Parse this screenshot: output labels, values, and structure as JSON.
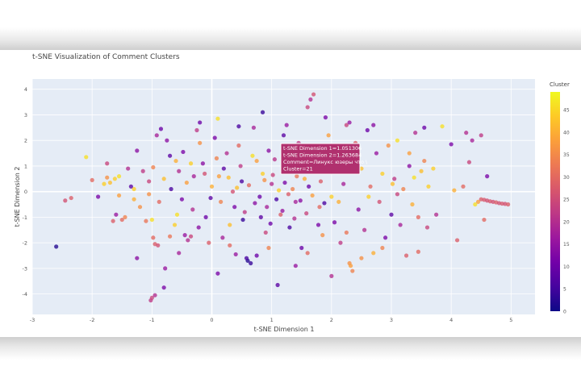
{
  "chart_data": {
    "type": "scatter",
    "title": "t-SNE Visualization of Comment Clusters",
    "xlabel": "t-SNE Dimension 1",
    "ylabel": "t-SNE Dimension 2",
    "xlim": [
      -3,
      5.4
    ],
    "ylim": [
      -4.8,
      4.4
    ],
    "xticks": [
      -3,
      -2,
      -1,
      0,
      1,
      2,
      3,
      4,
      5
    ],
    "yticks": [
      -4,
      -3,
      -2,
      -1,
      0,
      1,
      2,
      3,
      4
    ],
    "grid": true,
    "colorbar": {
      "title": "Cluster",
      "range": [
        0,
        49
      ],
      "ticks": [
        0,
        5,
        10,
        15,
        20,
        25,
        30,
        35,
        40,
        45
      ],
      "colorscale": "plasma"
    },
    "hover": {
      "lines": [
        "t-SNE Dimension 1=1.051306",
        "t-SNE Dimension 2=1.263684",
        "Comment=Линукс юзеры  что  \\",
        "Cluster=21"
      ]
    },
    "points": [
      {
        "x": -2.6,
        "y": -2.15,
        "c": 2
      },
      {
        "x": -2.45,
        "y": -0.35,
        "c": 26
      },
      {
        "x": -2.35,
        "y": -0.25,
        "c": 28
      },
      {
        "x": -2.1,
        "y": 1.35,
        "c": 46
      },
      {
        "x": -1.9,
        "y": -0.2,
        "c": 12
      },
      {
        "x": -1.75,
        "y": 0.55,
        "c": 36
      },
      {
        "x": -1.7,
        "y": 0.35,
        "c": 42
      },
      {
        "x": -1.62,
        "y": 0.5,
        "c": 44
      },
      {
        "x": -1.55,
        "y": -0.15,
        "c": 38
      },
      {
        "x": -1.5,
        "y": -1.1,
        "c": 30
      },
      {
        "x": -1.45,
        "y": -1.0,
        "c": 34
      },
      {
        "x": -1.4,
        "y": 0.9,
        "c": 20
      },
      {
        "x": -1.3,
        "y": 0.1,
        "c": 44
      },
      {
        "x": -1.25,
        "y": 1.6,
        "c": 14
      },
      {
        "x": -1.2,
        "y": -0.6,
        "c": 36
      },
      {
        "x": -1.1,
        "y": -1.15,
        "c": 32
      },
      {
        "x": -1.05,
        "y": 0.4,
        "c": 24
      },
      {
        "x": -1.0,
        "y": -1.1,
        "c": 46
      },
      {
        "x": -0.95,
        "y": -2.05,
        "c": 28
      },
      {
        "x": -0.9,
        "y": -2.1,
        "c": 26
      },
      {
        "x": -0.98,
        "y": -1.8,
        "c": 30
      },
      {
        "x": -1.02,
        "y": -4.25,
        "c": 22
      },
      {
        "x": -1.0,
        "y": -4.15,
        "c": 24
      },
      {
        "x": -0.95,
        "y": -4.05,
        "c": 20
      },
      {
        "x": -0.8,
        "y": -3.75,
        "c": 12
      },
      {
        "x": -0.78,
        "y": -3.0,
        "c": 16
      },
      {
        "x": -0.92,
        "y": 2.2,
        "c": 18
      },
      {
        "x": -0.85,
        "y": 2.45,
        "c": 10
      },
      {
        "x": -0.75,
        "y": 2.0,
        "c": 14
      },
      {
        "x": -0.7,
        "y": 1.4,
        "c": 8
      },
      {
        "x": -0.6,
        "y": 1.2,
        "c": 40
      },
      {
        "x": -0.55,
        "y": 0.8,
        "c": 20
      },
      {
        "x": -0.5,
        "y": -0.3,
        "c": 12
      },
      {
        "x": -0.45,
        "y": -1.7,
        "c": 16
      },
      {
        "x": -0.4,
        "y": -1.9,
        "c": 20
      },
      {
        "x": -0.35,
        "y": -1.75,
        "c": 24
      },
      {
        "x": -0.3,
        "y": 0.6,
        "c": 18
      },
      {
        "x": -0.25,
        "y": 2.4,
        "c": 22
      },
      {
        "x": -0.2,
        "y": 1.9,
        "c": 36
      },
      {
        "x": -0.15,
        "y": 1.1,
        "c": 14
      },
      {
        "x": -0.1,
        "y": -1.0,
        "c": 10
      },
      {
        "x": -0.05,
        "y": -2.0,
        "c": 28
      },
      {
        "x": 0.0,
        "y": 0.2,
        "c": 40
      },
      {
        "x": 0.05,
        "y": 2.1,
        "c": 12
      },
      {
        "x": 0.1,
        "y": 2.85,
        "c": 46
      },
      {
        "x": 0.15,
        "y": -0.4,
        "c": 34
      },
      {
        "x": 0.2,
        "y": 0.9,
        "c": 8
      },
      {
        "x": 0.25,
        "y": 1.5,
        "c": 20
      },
      {
        "x": 0.3,
        "y": -1.3,
        "c": 42
      },
      {
        "x": 0.35,
        "y": 0.0,
        "c": 26
      },
      {
        "x": 0.4,
        "y": -2.45,
        "c": 16
      },
      {
        "x": 0.45,
        "y": 1.8,
        "c": 30
      },
      {
        "x": 0.5,
        "y": 0.4,
        "c": 6
      },
      {
        "x": 0.55,
        "y": -0.8,
        "c": 22
      },
      {
        "x": 0.6,
        "y": -2.7,
        "c": 2
      },
      {
        "x": 0.65,
        "y": -2.8,
        "c": 4
      },
      {
        "x": 0.58,
        "y": -2.6,
        "c": 6
      },
      {
        "x": 0.7,
        "y": 2.5,
        "c": 18
      },
      {
        "x": 0.75,
        "y": 1.2,
        "c": 38
      },
      {
        "x": 0.8,
        "y": -0.2,
        "c": 10
      },
      {
        "x": 0.85,
        "y": 0.7,
        "c": 44
      },
      {
        "x": 0.9,
        "y": -1.6,
        "c": 24
      },
      {
        "x": 0.95,
        "y": 1.6,
        "c": 14
      },
      {
        "x": 1.0,
        "y": 0.3,
        "c": 20
      },
      {
        "x": 1.05,
        "y": 1.26,
        "c": 21
      },
      {
        "x": 1.1,
        "y": -3.65,
        "c": 8
      },
      {
        "x": 1.15,
        "y": -0.9,
        "c": 28
      },
      {
        "x": 1.2,
        "y": 0.9,
        "c": 12
      },
      {
        "x": 1.25,
        "y": 2.6,
        "c": 16
      },
      {
        "x": 1.3,
        "y": -1.4,
        "c": 6
      },
      {
        "x": 1.35,
        "y": 0.1,
        "c": 34
      },
      {
        "x": 1.4,
        "y": -0.4,
        "c": 18
      },
      {
        "x": 1.45,
        "y": 1.9,
        "c": 22
      },
      {
        "x": 1.5,
        "y": -2.2,
        "c": 10
      },
      {
        "x": 1.55,
        "y": 0.5,
        "c": 40
      },
      {
        "x": 1.6,
        "y": 3.3,
        "c": 24
      },
      {
        "x": 1.65,
        "y": 3.6,
        "c": 20
      },
      {
        "x": 1.7,
        "y": 3.8,
        "c": 26
      },
      {
        "x": 1.75,
        "y": 1.4,
        "c": 14
      },
      {
        "x": 1.8,
        "y": -0.6,
        "c": 30
      },
      {
        "x": 1.85,
        "y": -1.7,
        "c": 36
      },
      {
        "x": 1.9,
        "y": 0.8,
        "c": 8
      },
      {
        "x": 1.95,
        "y": 2.2,
        "c": 38
      },
      {
        "x": 2.0,
        "y": -0.2,
        "c": 44
      },
      {
        "x": 2.05,
        "y": -1.2,
        "c": 12
      },
      {
        "x": 2.1,
        "y": 1.1,
        "c": 32
      },
      {
        "x": 2.15,
        "y": -2.0,
        "c": 22
      },
      {
        "x": 2.2,
        "y": 0.3,
        "c": 18
      },
      {
        "x": 2.25,
        "y": 2.6,
        "c": 24
      },
      {
        "x": 2.3,
        "y": -2.8,
        "c": 36
      },
      {
        "x": 2.35,
        "y": -3.1,
        "c": 34
      },
      {
        "x": 2.32,
        "y": -2.9,
        "c": 38
      },
      {
        "x": 2.4,
        "y": 1.9,
        "c": 28
      },
      {
        "x": 2.45,
        "y": -0.7,
        "c": 14
      },
      {
        "x": 2.5,
        "y": 0.9,
        "c": 42
      },
      {
        "x": 2.55,
        "y": -1.5,
        "c": 20
      },
      {
        "x": 2.6,
        "y": 2.4,
        "c": 10
      },
      {
        "x": 2.65,
        "y": 0.2,
        "c": 30
      },
      {
        "x": 2.7,
        "y": -2.4,
        "c": 40
      },
      {
        "x": 2.75,
        "y": 1.5,
        "c": 16
      },
      {
        "x": 2.8,
        "y": -0.4,
        "c": 26
      },
      {
        "x": 2.85,
        "y": 0.7,
        "c": 44
      },
      {
        "x": 2.9,
        "y": -1.8,
        "c": 12
      },
      {
        "x": 2.95,
        "y": 1.8,
        "c": 36
      },
      {
        "x": 3.0,
        "y": -0.9,
        "c": 8
      },
      {
        "x": 3.05,
        "y": 0.5,
        "c": 22
      },
      {
        "x": 3.1,
        "y": 2.0,
        "c": 46
      },
      {
        "x": 3.15,
        "y": -1.3,
        "c": 18
      },
      {
        "x": 3.2,
        "y": 0.1,
        "c": 34
      },
      {
        "x": 3.25,
        "y": -2.5,
        "c": 28
      },
      {
        "x": 3.3,
        "y": 1.0,
        "c": 14
      },
      {
        "x": 3.35,
        "y": -0.5,
        "c": 40
      },
      {
        "x": 3.4,
        "y": 2.3,
        "c": 20
      },
      {
        "x": 3.45,
        "y": -1.0,
        "c": 30
      },
      {
        "x": 3.5,
        "y": 0.8,
        "c": 42
      },
      {
        "x": 3.55,
        "y": 2.5,
        "c": 10
      },
      {
        "x": 3.6,
        "y": -1.4,
        "c": 24
      },
      {
        "x": 3.7,
        "y": 0.9,
        "c": 44
      },
      {
        "x": 3.85,
        "y": 2.55,
        "c": 46
      },
      {
        "x": 4.0,
        "y": 1.85,
        "c": 12
      },
      {
        "x": 4.05,
        "y": 0.05,
        "c": 40
      },
      {
        "x": 4.2,
        "y": 0.2,
        "c": 30
      },
      {
        "x": 4.25,
        "y": 2.3,
        "c": 20
      },
      {
        "x": 4.3,
        "y": 1.15,
        "c": 24
      },
      {
        "x": 4.35,
        "y": 2.0,
        "c": 18
      },
      {
        "x": 4.4,
        "y": -0.5,
        "c": 46
      },
      {
        "x": 4.45,
        "y": -0.4,
        "c": 38
      },
      {
        "x": 4.5,
        "y": 2.2,
        "c": 22
      },
      {
        "x": 4.55,
        "y": -1.1,
        "c": 30
      },
      {
        "x": 4.6,
        "y": 0.6,
        "c": 12
      },
      {
        "x": 4.5,
        "y": -0.3,
        "c": 28
      },
      {
        "x": 4.55,
        "y": -0.32,
        "c": 27
      },
      {
        "x": 4.6,
        "y": -0.35,
        "c": 26
      },
      {
        "x": 4.65,
        "y": -0.38,
        "c": 27
      },
      {
        "x": 4.7,
        "y": -0.4,
        "c": 26
      },
      {
        "x": 4.75,
        "y": -0.42,
        "c": 28
      },
      {
        "x": 4.8,
        "y": -0.45,
        "c": 26
      },
      {
        "x": 4.85,
        "y": -0.47,
        "c": 27
      },
      {
        "x": 4.9,
        "y": -0.48,
        "c": 26
      },
      {
        "x": 4.95,
        "y": -0.5,
        "c": 28
      },
      {
        "x": -1.6,
        "y": -0.9,
        "c": 16
      },
      {
        "x": -1.35,
        "y": 0.2,
        "c": 8
      },
      {
        "x": -1.15,
        "y": 0.8,
        "c": 22
      },
      {
        "x": -0.88,
        "y": -0.4,
        "c": 30
      },
      {
        "x": -0.68,
        "y": 0.1,
        "c": 6
      },
      {
        "x": -0.62,
        "y": -1.3,
        "c": 44
      },
      {
        "x": -0.48,
        "y": 1.55,
        "c": 12
      },
      {
        "x": -0.42,
        "y": 0.35,
        "c": 38
      },
      {
        "x": -0.32,
        "y": -0.7,
        "c": 20
      },
      {
        "x": -0.22,
        "y": -1.4,
        "c": 14
      },
      {
        "x": -0.12,
        "y": 0.7,
        "c": 26
      },
      {
        "x": -0.02,
        "y": -0.25,
        "c": 8
      },
      {
        "x": 0.08,
        "y": 1.3,
        "c": 34
      },
      {
        "x": 0.18,
        "y": -1.8,
        "c": 18
      },
      {
        "x": 0.28,
        "y": 0.55,
        "c": 42
      },
      {
        "x": 0.38,
        "y": -0.6,
        "c": 12
      },
      {
        "x": 0.48,
        "y": 1.0,
        "c": 22
      },
      {
        "x": 0.52,
        "y": -1.1,
        "c": 4
      },
      {
        "x": 0.62,
        "y": 0.25,
        "c": 30
      },
      {
        "x": 0.72,
        "y": -0.45,
        "c": 14
      },
      {
        "x": 0.82,
        "y": -1.0,
        "c": 8
      },
      {
        "x": 0.88,
        "y": 0.45,
        "c": 36
      },
      {
        "x": 0.92,
        "y": -0.6,
        "c": 18
      },
      {
        "x": 0.98,
        "y": -1.25,
        "c": 10
      },
      {
        "x": 1.02,
        "y": 0.65,
        "c": 24
      },
      {
        "x": 1.08,
        "y": -0.3,
        "c": 6
      },
      {
        "x": 1.12,
        "y": 0.05,
        "c": 44
      },
      {
        "x": 1.18,
        "y": -0.75,
        "c": 16
      },
      {
        "x": 1.22,
        "y": 0.35,
        "c": 12
      },
      {
        "x": 1.28,
        "y": -0.1,
        "c": 28
      },
      {
        "x": 1.32,
        "y": 0.75,
        "c": 8
      },
      {
        "x": 1.38,
        "y": -1.05,
        "c": 20
      },
      {
        "x": 1.42,
        "y": 0.6,
        "c": 32
      },
      {
        "x": 1.48,
        "y": -0.35,
        "c": 14
      },
      {
        "x": 1.52,
        "y": 1.1,
        "c": 18
      },
      {
        "x": 1.58,
        "y": -0.85,
        "c": 24
      },
      {
        "x": 1.62,
        "y": 0.2,
        "c": 10
      },
      {
        "x": 1.68,
        "y": -0.15,
        "c": 38
      },
      {
        "x": 1.72,
        "y": 0.95,
        "c": 16
      },
      {
        "x": 1.78,
        "y": -1.3,
        "c": 12
      },
      {
        "x": 1.82,
        "y": 0.4,
        "c": 28
      },
      {
        "x": 1.88,
        "y": -0.45,
        "c": 6
      },
      {
        "x": -1.8,
        "y": 0.3,
        "c": 44
      },
      {
        "x": -1.55,
        "y": 0.6,
        "c": 46
      },
      {
        "x": -1.3,
        "y": -0.3,
        "c": 40
      },
      {
        "x": -1.05,
        "y": -0.1,
        "c": 36
      },
      {
        "x": -0.8,
        "y": 0.5,
        "c": 42
      },
      {
        "x": -0.58,
        "y": -0.9,
        "c": 46
      },
      {
        "x": -0.35,
        "y": 1.1,
        "c": 44
      },
      {
        "x": 0.12,
        "y": 0.6,
        "c": 38
      },
      {
        "x": 0.42,
        "y": 0.15,
        "c": 42
      },
      {
        "x": 0.68,
        "y": 1.4,
        "c": 46
      },
      {
        "x": 2.12,
        "y": -0.4,
        "c": 40
      },
      {
        "x": 2.62,
        "y": -0.2,
        "c": 44
      },
      {
        "x": 3.02,
        "y": 0.3,
        "c": 42
      },
      {
        "x": 3.38,
        "y": 0.55,
        "c": 46
      },
      {
        "x": 3.62,
        "y": 0.2,
        "c": 44
      },
      {
        "x": -2.0,
        "y": 0.45,
        "c": 30
      },
      {
        "x": -1.65,
        "y": -1.15,
        "c": 28
      },
      {
        "x": -0.98,
        "y": 0.95,
        "c": 34
      },
      {
        "x": -0.7,
        "y": -1.75,
        "c": 32
      },
      {
        "x": 0.3,
        "y": -2.1,
        "c": 30
      },
      {
        "x": 0.95,
        "y": -2.2,
        "c": 34
      },
      {
        "x": 1.6,
        "y": -2.4,
        "c": 30
      },
      {
        "x": 2.25,
        "y": -1.6,
        "c": 32
      },
      {
        "x": 2.85,
        "y": -2.2,
        "c": 34
      },
      {
        "x": 3.45,
        "y": -2.35,
        "c": 30
      },
      {
        "x": -0.2,
        "y": 2.7,
        "c": 10
      },
      {
        "x": 0.45,
        "y": 2.55,
        "c": 6
      },
      {
        "x": 0.85,
        "y": 3.1,
        "c": 4
      },
      {
        "x": 1.2,
        "y": 2.2,
        "c": 8
      },
      {
        "x": 1.9,
        "y": 2.9,
        "c": 12
      },
      {
        "x": 2.3,
        "y": 2.7,
        "c": 16
      },
      {
        "x": 2.7,
        "y": 2.6,
        "c": 14
      },
      {
        "x": 0.1,
        "y": -3.2,
        "c": 12
      },
      {
        "x": 0.75,
        "y": -2.5,
        "c": 10
      },
      {
        "x": 2.0,
        "y": -3.3,
        "c": 20
      },
      {
        "x": -1.25,
        "y": -2.6,
        "c": 14
      },
      {
        "x": -1.75,
        "y": 1.1,
        "c": 24
      },
      {
        "x": -0.55,
        "y": -2.4,
        "c": 18
      },
      {
        "x": 1.4,
        "y": -2.9,
        "c": 16
      },
      {
        "x": 2.5,
        "y": -2.6,
        "c": 36
      },
      {
        "x": 3.1,
        "y": -0.1,
        "c": 24
      },
      {
        "x": 3.3,
        "y": 1.5,
        "c": 38
      },
      {
        "x": 3.55,
        "y": 1.2,
        "c": 34
      },
      {
        "x": 3.75,
        "y": -0.9,
        "c": 20
      },
      {
        "x": 4.1,
        "y": -1.9,
        "c": 28
      }
    ]
  }
}
